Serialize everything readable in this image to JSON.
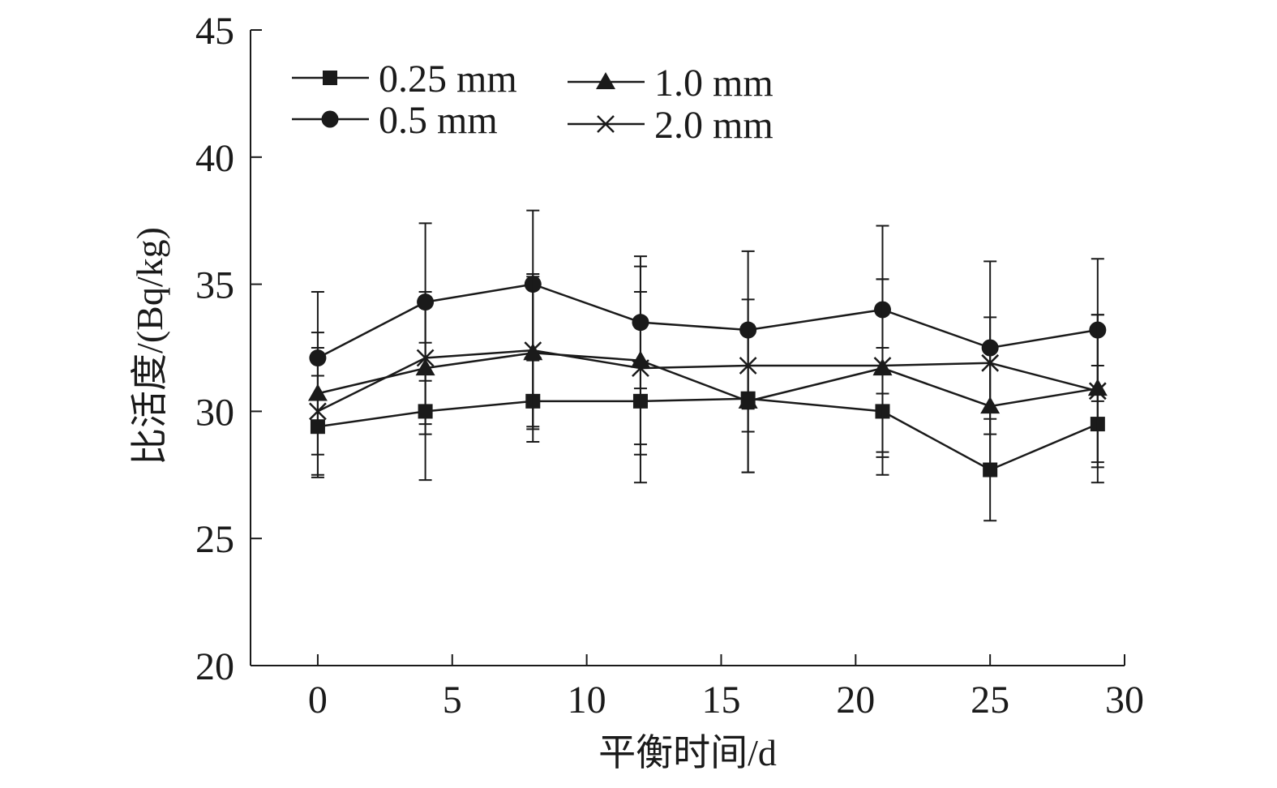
{
  "chart_data": {
    "type": "line",
    "title": "",
    "xlabel": "平衡时间/d",
    "ylabel": "比活度/(Bq/kg)",
    "xlim": [
      -2.5,
      30
    ],
    "ylim": [
      20,
      45
    ],
    "xticks": [
      0,
      5,
      10,
      15,
      20,
      25,
      30
    ],
    "yticks": [
      20,
      25,
      30,
      35,
      40,
      45
    ],
    "xtick_labels": [
      "0",
      "5",
      "10",
      "15",
      "20",
      "25",
      "30"
    ],
    "ytick_labels": [
      "20",
      "25",
      "30",
      "35",
      "40",
      "45"
    ],
    "x": [
      0,
      4,
      8,
      12,
      16,
      21,
      25,
      29
    ],
    "grid": false,
    "legend_position": "top-left",
    "series": [
      {
        "name": "0.25 mm",
        "marker": "square",
        "values": [
          29.4,
          30.0,
          30.4,
          30.4,
          30.5,
          30.0,
          27.7,
          29.5
        ],
        "errors": [
          2.0,
          2.7,
          1.6,
          3.2,
          2.9,
          2.5,
          2.0,
          2.3
        ]
      },
      {
        "name": "0.5 mm",
        "marker": "circle",
        "values": [
          32.1,
          34.3,
          35.0,
          33.5,
          33.2,
          34.0,
          32.5,
          33.2
        ],
        "errors": [
          2.6,
          3.1,
          2.9,
          2.6,
          3.1,
          3.3,
          3.4,
          2.8
        ]
      },
      {
        "name": "1.0 mm",
        "marker": "triangle",
        "values": [
          30.7,
          31.7,
          32.3,
          32.0,
          30.4,
          31.7,
          30.2,
          30.9
        ],
        "errors": [
          2.4,
          2.6,
          3.0,
          3.7,
          2.8,
          3.5,
          2.4,
          2.9
        ]
      },
      {
        "name": "2.0 mm",
        "marker": "cross",
        "values": [
          30.0,
          32.1,
          32.4,
          31.7,
          31.8,
          31.8,
          31.9,
          30.8
        ],
        "errors": [
          2.5,
          2.6,
          3.0,
          3.0,
          2.6,
          3.4,
          1.8,
          3.0
        ]
      }
    ]
  }
}
